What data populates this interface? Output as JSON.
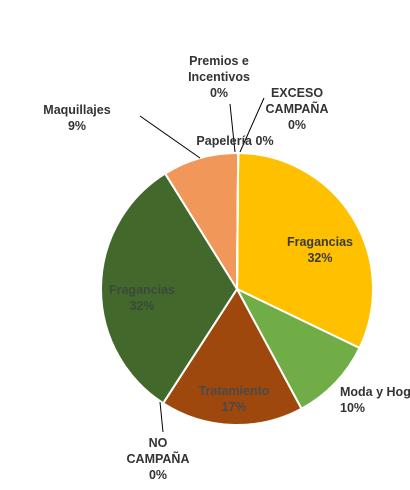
{
  "chart_data": {
    "type": "pie",
    "title": "",
    "series": [
      {
        "name": "Fragancias",
        "value": 32,
        "label": "32%",
        "color": "#FFC000",
        "label_color": "#3a3a3a"
      },
      {
        "name": "Moda y Hog",
        "value": 10,
        "label": "10%",
        "color": "#70AD47",
        "label_color": "#333333"
      },
      {
        "name": "Tratamiento",
        "value": 17,
        "label": "17%",
        "color": "#9E480E",
        "label_color": "#4a4a4a"
      },
      {
        "name": "NO CAMPAÑA",
        "value": 0,
        "label": "0%",
        "color": "#264478",
        "label_color": "#333333"
      },
      {
        "name": "Fragancias",
        "value": 32,
        "label": "32%",
        "color": "#43682B",
        "label_color": "#3a4a3a"
      },
      {
        "name": "Maquillajes",
        "value": 9,
        "label": "9%",
        "color": "#F1975A",
        "label_color": "#333333"
      },
      {
        "name": "Premios e Incentivos",
        "value": 0,
        "label": "0%",
        "color": "#A5A5A5",
        "label_color": "#333333"
      },
      {
        "name": "Papelería",
        "value": 0,
        "label": "0%",
        "color": "#5B9BD5",
        "label_color": "#333333"
      },
      {
        "name": "EXCESO CAMPAÑA",
        "value": 0,
        "label": "0%",
        "color": "#ED7D31",
        "label_color": "#333333"
      }
    ],
    "data_labels": [
      {
        "lines": [
          "Fragancias",
          "32%"
        ]
      },
      {
        "lines": [
          "Moda y Hog",
          "10%"
        ]
      },
      {
        "lines": [
          "Tratamiento",
          "17%"
        ]
      },
      {
        "lines": [
          "NO",
          "CAMPAÑA",
          "0%"
        ]
      },
      {
        "lines": [
          "Fragancias",
          "32%"
        ]
      },
      {
        "lines": [
          "Maquillajes",
          "9%"
        ]
      },
      {
        "lines": [
          "Premios e",
          "Incentivos",
          "0%"
        ]
      },
      {
        "lines": [
          "Papelería 0%"
        ]
      },
      {
        "lines": [
          "EXCESO",
          "CAMPAÑA",
          "0%"
        ]
      }
    ]
  }
}
